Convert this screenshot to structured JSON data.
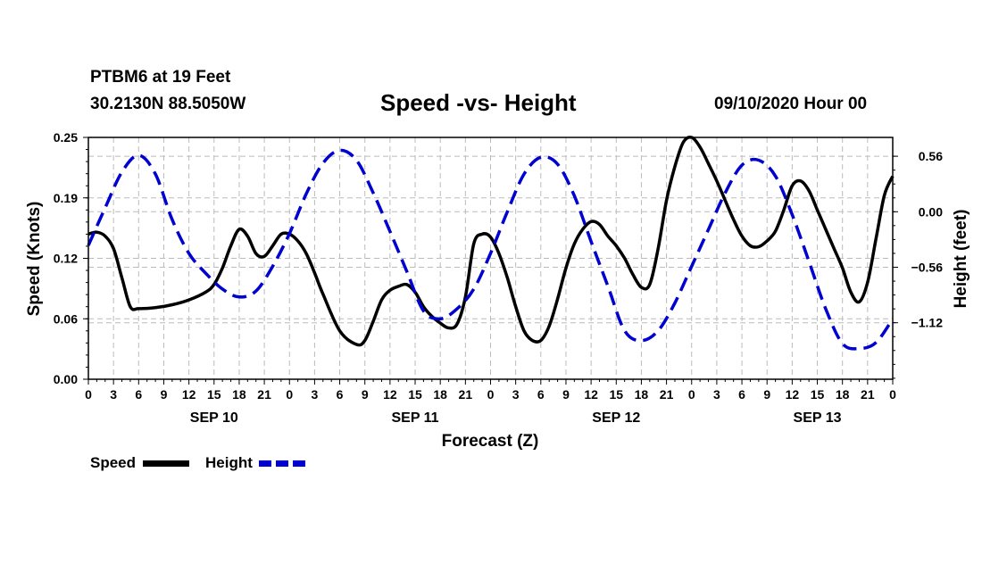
{
  "header": {
    "station": "PTBM6 at 19 Feet",
    "coords": "30.2130N 88.5050W",
    "title": "Speed -vs- Height",
    "datetime": "09/10/2020 Hour 00"
  },
  "colors": {
    "speed": "#000000",
    "height": "#0000d0",
    "grid": "#bbbbbb"
  },
  "chart_data": {
    "type": "line",
    "title": "Speed -vs- Height",
    "xlabel": "Forecast (Z)",
    "ylabel": "Speed (Knots)",
    "y2label": "Height (feet)",
    "x_ticks": [
      "0",
      "3",
      "6",
      "9",
      "12",
      "15",
      "18",
      "21",
      "0",
      "3",
      "6",
      "9",
      "12",
      "15",
      "18",
      "21",
      "0",
      "3",
      "6",
      "9",
      "12",
      "15",
      "18",
      "21",
      "0",
      "3",
      "6",
      "9",
      "12",
      "15",
      "18",
      "21",
      "0"
    ],
    "x_day_labels": [
      {
        "label": "SEP 10",
        "hour": 15
      },
      {
        "label": "SEP 11",
        "hour": 39
      },
      {
        "label": "SEP 12",
        "hour": 63
      },
      {
        "label": "SEP 13",
        "hour": 87
      }
    ],
    "xlim": [
      0,
      96
    ],
    "ylim": [
      0,
      0.25
    ],
    "y_ticks": [
      "0.00",
      "0.06",
      "0.12",
      "0.19",
      "0.25"
    ],
    "y_tick_values": [
      0,
      0.0625,
      0.125,
      0.1875,
      0.25
    ],
    "y2lim": [
      -1.69,
      0.75
    ],
    "y2_ticks": [
      "0.56",
      "0.00",
      "−0.56",
      "−1.12"
    ],
    "y2_tick_values": [
      0.56,
      0.0,
      -0.56,
      -1.12
    ],
    "series": [
      {
        "name": "Speed",
        "axis": "left",
        "x": [
          0,
          1,
          2,
          3,
          4,
          5,
          6,
          8,
          10,
          12,
          14,
          15,
          16,
          17,
          18,
          19,
          20,
          21,
          22,
          23,
          24,
          25,
          26,
          27,
          28,
          30,
          32,
          33,
          34,
          35,
          36,
          37,
          38,
          39,
          40,
          41,
          42,
          43,
          44,
          45,
          46,
          47,
          48,
          49,
          50,
          51,
          52,
          53,
          54,
          55,
          56,
          57,
          58,
          59,
          60,
          61,
          62,
          63,
          64,
          65,
          66,
          67,
          68,
          69,
          70,
          71,
          72,
          73,
          74,
          75,
          76,
          77,
          78,
          79,
          80,
          81,
          82,
          83,
          84,
          85,
          86,
          87,
          88,
          89,
          90,
          91,
          92,
          93,
          94,
          95,
          96
        ],
        "values": [
          0.15,
          0.152,
          0.148,
          0.135,
          0.105,
          0.075,
          0.073,
          0.074,
          0.077,
          0.082,
          0.09,
          0.098,
          0.115,
          0.138,
          0.155,
          0.148,
          0.13,
          0.127,
          0.138,
          0.15,
          0.15,
          0.143,
          0.13,
          0.11,
          0.088,
          0.05,
          0.036,
          0.04,
          0.06,
          0.082,
          0.092,
          0.096,
          0.098,
          0.09,
          0.075,
          0.065,
          0.058,
          0.053,
          0.057,
          0.085,
          0.14,
          0.15,
          0.147,
          0.13,
          0.105,
          0.075,
          0.05,
          0.04,
          0.04,
          0.055,
          0.083,
          0.115,
          0.14,
          0.155,
          0.163,
          0.16,
          0.148,
          0.138,
          0.125,
          0.108,
          0.095,
          0.098,
          0.135,
          0.185,
          0.22,
          0.245,
          0.25,
          0.24,
          0.223,
          0.205,
          0.185,
          0.165,
          0.148,
          0.138,
          0.137,
          0.143,
          0.153,
          0.175,
          0.2,
          0.205,
          0.195,
          0.175,
          0.155,
          0.135,
          0.115,
          0.09,
          0.08,
          0.1,
          0.145,
          0.19,
          0.21
        ]
      },
      {
        "name": "Height",
        "axis": "right",
        "x": [
          0,
          2,
          4,
          6,
          8,
          10,
          12,
          14,
          16,
          18,
          20,
          22,
          24,
          26,
          28,
          30,
          32,
          34,
          36,
          38,
          40,
          42,
          44,
          46,
          48,
          50,
          52,
          54,
          56,
          58,
          60,
          62,
          64,
          66,
          68,
          70,
          72,
          74,
          76,
          78,
          80,
          82,
          84,
          86,
          88,
          90,
          92,
          94,
          96
        ],
        "values": [
          -0.34,
          0.04,
          0.4,
          0.57,
          0.38,
          -0.08,
          -0.42,
          -0.62,
          -0.78,
          -0.86,
          -0.8,
          -0.55,
          -0.22,
          0.18,
          0.49,
          0.62,
          0.52,
          0.19,
          -0.2,
          -0.6,
          -1.0,
          -1.08,
          -0.98,
          -0.78,
          -0.42,
          0.0,
          0.38,
          0.55,
          0.48,
          0.16,
          -0.3,
          -0.75,
          -1.2,
          -1.3,
          -1.2,
          -0.92,
          -0.55,
          -0.18,
          0.19,
          0.47,
          0.52,
          0.36,
          -0.03,
          -0.5,
          -0.98,
          -1.33,
          -1.38,
          -1.32,
          -1.08
        ]
      }
    ],
    "legend": [
      {
        "name": "Speed",
        "style": "solid"
      },
      {
        "name": "Height",
        "style": "dashed"
      }
    ]
  }
}
